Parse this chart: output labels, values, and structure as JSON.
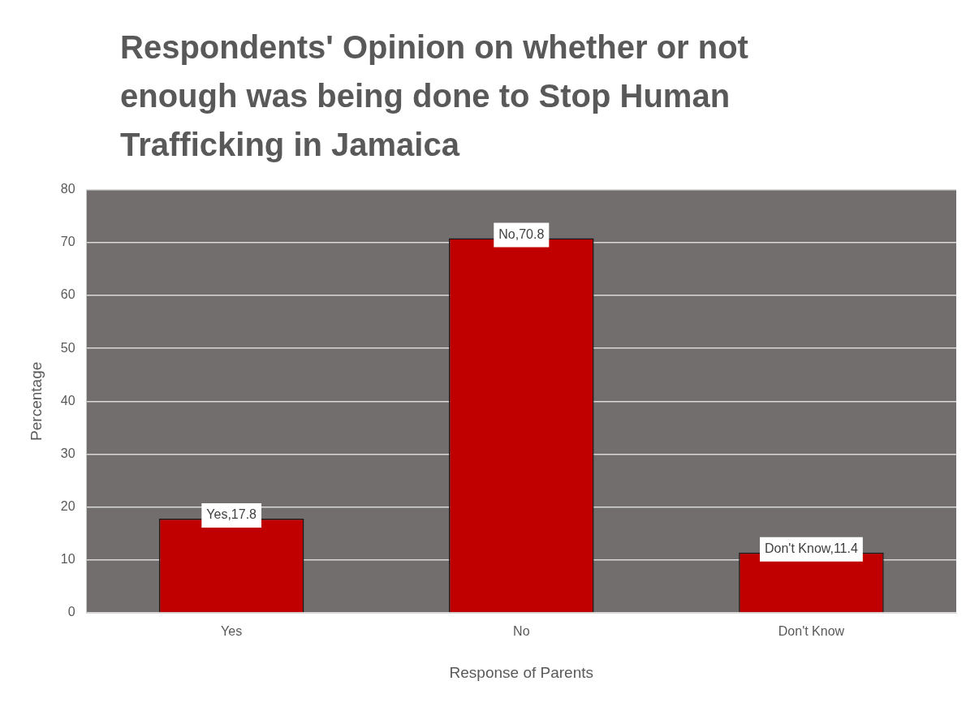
{
  "chart_data": {
    "type": "bar",
    "title": "Respondents' Opinion on whether or not enough was being done to Stop Human Trafficking in Jamaica",
    "xlabel": "Response of Parents",
    "ylabel": "Percentage",
    "categories": [
      "Yes",
      "No",
      "Don't Know"
    ],
    "values": [
      17.8,
      70.8,
      11.4
    ],
    "color": "#c00000",
    "value_labels": [
      "Yes,17.8",
      "No,70.8",
      "Don't Know,11.4"
    ],
    "ylim": [
      0,
      80
    ],
    "yticks": [
      0,
      10,
      20,
      30,
      40,
      50,
      60,
      70,
      80
    ],
    "grid": "y",
    "legend": false
  }
}
